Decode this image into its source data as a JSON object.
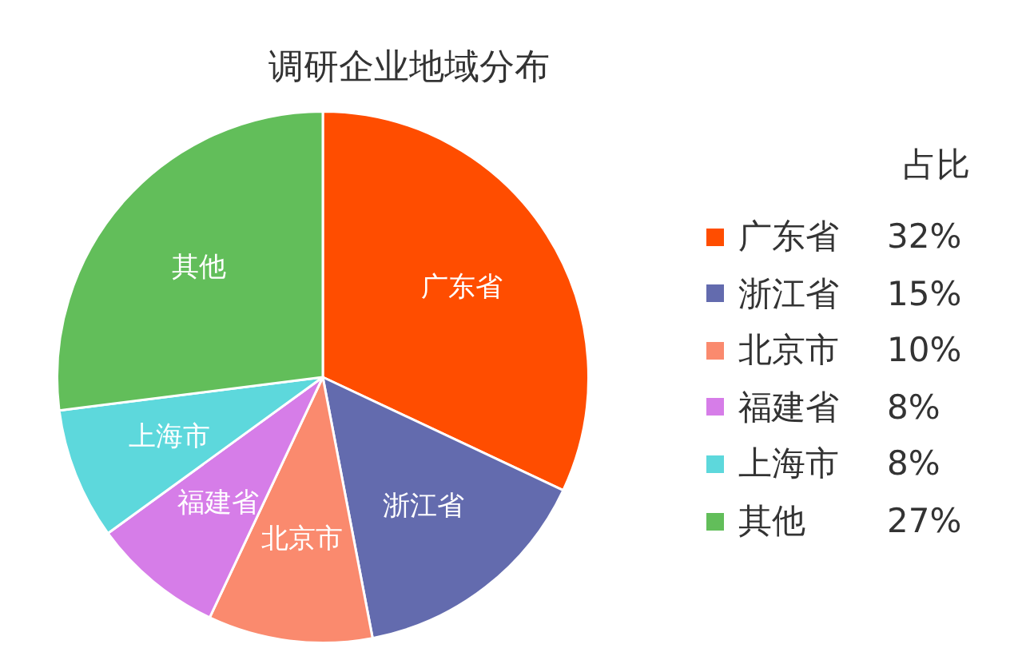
{
  "chart_data": {
    "type": "pie",
    "title": "调研企业地域分布",
    "legend_title": "占比",
    "categories": [
      "广东省",
      "浙江省",
      "北京市",
      "福建省",
      "上海市",
      "其他"
    ],
    "values": [
      32,
      15,
      10,
      8,
      8,
      27
    ],
    "colors": [
      "#ff4d00",
      "#636bae",
      "#fa8a6e",
      "#d67de8",
      "#5dd8dc",
      "#62be5a"
    ],
    "value_labels": [
      "32%",
      "15%",
      "10%",
      "8%",
      "8%",
      "27%"
    ],
    "legend": "right"
  }
}
